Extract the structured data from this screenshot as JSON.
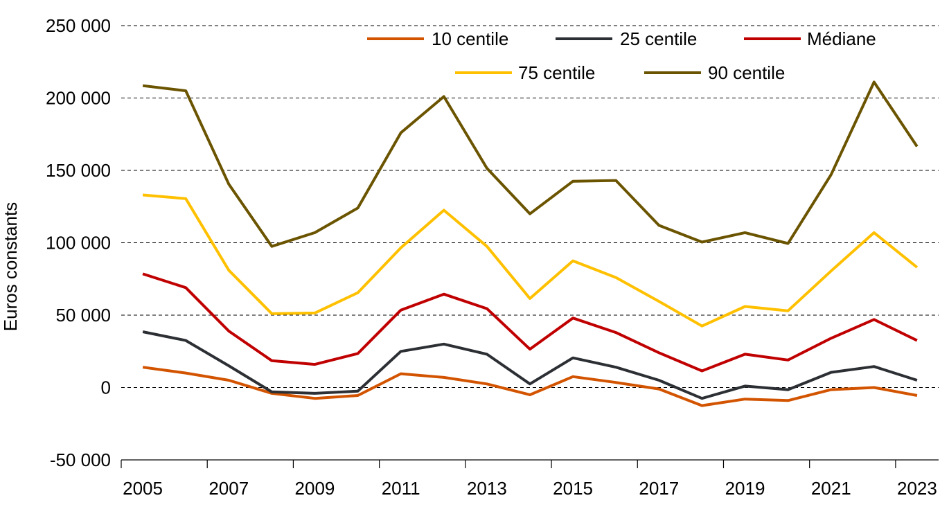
{
  "chart_data": {
    "type": "line",
    "title": "",
    "xlabel": "",
    "ylabel": "Euros constants",
    "ylim": [
      -50000,
      250000
    ],
    "yticks": [
      -50000,
      0,
      50000,
      100000,
      150000,
      200000,
      250000
    ],
    "ytick_labels": [
      "-50 000",
      "0",
      "50 000",
      "100 000",
      "150 000",
      "200 000",
      "250 000"
    ],
    "xlim": [
      2004.5,
      2023.5
    ],
    "x": [
      2005,
      2006,
      2007,
      2008,
      2009,
      2010,
      2011,
      2012,
      2013,
      2014,
      2015,
      2016,
      2017,
      2018,
      2019,
      2020,
      2021,
      2022,
      2023
    ],
    "xticks": [
      2005,
      2007,
      2009,
      2011,
      2013,
      2015,
      2017,
      2019,
      2021,
      2023
    ],
    "xtick_labels": [
      "2005",
      "2007",
      "2009",
      "2011",
      "2013",
      "2015",
      "2017",
      "2019",
      "2021",
      "2023"
    ],
    "grid": true,
    "legend_position": "top-right",
    "series": [
      {
        "name": "10 centile",
        "color": "#d35400",
        "values": [
          14000,
          10000,
          5000,
          -4000,
          -7500,
          -5500,
          9500,
          7000,
          2500,
          -5000,
          7500,
          3500,
          -1000,
          -12500,
          -8000,
          -9000,
          -1500,
          0,
          -5500
        ]
      },
      {
        "name": "25 centile",
        "color": "#2c2f33",
        "values": [
          38500,
          32500,
          15000,
          -3000,
          -4000,
          -2500,
          25000,
          30000,
          23000,
          2500,
          20500,
          14000,
          5000,
          -7500,
          1000,
          -1500,
          10500,
          14500,
          5000
        ]
      },
      {
        "name": "Médiane",
        "color": "#c00000",
        "values": [
          78500,
          69000,
          39000,
          18500,
          16000,
          23500,
          53500,
          64500,
          54500,
          26500,
          48000,
          38000,
          24000,
          11500,
          23000,
          19000,
          34000,
          47000,
          32500
        ]
      },
      {
        "name": "75 centile",
        "color": "#ffc000",
        "values": [
          133000,
          130500,
          81000,
          51000,
          51500,
          65500,
          96500,
          122500,
          97500,
          61500,
          87500,
          76000,
          59500,
          42500,
          56000,
          53000,
          80500,
          107000,
          83000
        ]
      },
      {
        "name": "90 centile",
        "color": "#6b5400",
        "values": [
          208500,
          205000,
          140500,
          97500,
          107000,
          124000,
          176000,
          201000,
          151500,
          120000,
          142500,
          143000,
          112000,
          100500,
          107000,
          99500,
          147000,
          211000,
          166500
        ]
      }
    ]
  }
}
